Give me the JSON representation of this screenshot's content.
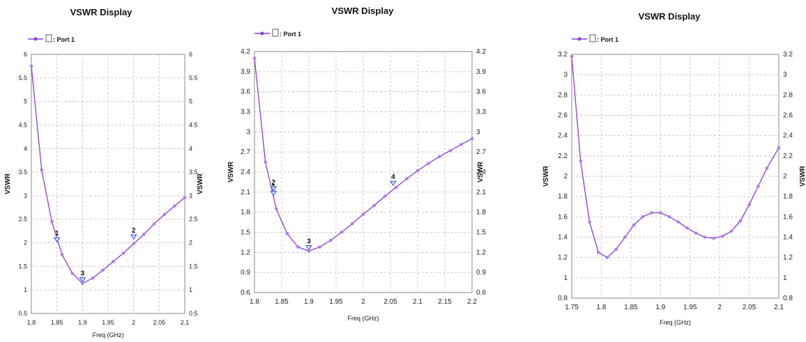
{
  "chart_data": [
    {
      "type": "line",
      "title": "VSWR Display",
      "xlabel": "Freq (GHz)",
      "ylabel": "VSWR",
      "ylabel_right": "VSWR",
      "xlim": [
        1.8,
        2.1
      ],
      "ylim": [
        0.5,
        6
      ],
      "x_ticks": [
        1.8,
        1.85,
        1.9,
        1.95,
        2,
        2.05,
        2.1
      ],
      "x_tick_labels": [
        "1.8",
        "1.85",
        "1.9",
        "1.95",
        "2",
        "2.05",
        "2.1"
      ],
      "y_ticks": [
        0.5,
        1,
        1.5,
        2,
        2.5,
        3,
        3.5,
        4,
        4.5,
        5,
        5.5,
        6
      ],
      "y_tick_labels": [
        "0.5",
        "1",
        "1.5",
        "2",
        "2.5",
        "3",
        "3.5",
        "4",
        "4.5",
        "5",
        "5.5",
        "6"
      ],
      "grid": true,
      "legend": {
        "label": ": Port 1",
        "placement": "top-left"
      },
      "series": [
        {
          "name": ": Port 1",
          "color": "#8a3ad8",
          "x": [
            1.8,
            1.82,
            1.84,
            1.86,
            1.88,
            1.9,
            1.92,
            1.94,
            1.96,
            1.98,
            2.0,
            2.02,
            2.04,
            2.06,
            2.08,
            2.1
          ],
          "y": [
            5.75,
            3.55,
            2.45,
            1.75,
            1.35,
            1.14,
            1.25,
            1.42,
            1.6,
            1.78,
            1.98,
            2.18,
            2.4,
            2.6,
            2.78,
            2.96
          ]
        }
      ],
      "markers": [
        {
          "label": "1",
          "x": 1.85,
          "y": 2.02
        },
        {
          "label": "2",
          "x": 2.0,
          "y": 2.08
        },
        {
          "label": "3",
          "x": 1.9,
          "y": 1.17
        }
      ]
    },
    {
      "type": "line",
      "title": "VSWR Display",
      "xlabel": "Freq (GHz)",
      "ylabel": "VSWR",
      "ylabel_right": "VSWR",
      "xlim": [
        1.8,
        2.2
      ],
      "ylim": [
        0.6,
        4.2
      ],
      "x_ticks": [
        1.8,
        1.85,
        1.9,
        1.95,
        2,
        2.05,
        2.1,
        2.15,
        2.2
      ],
      "x_tick_labels": [
        "1.8",
        "1.85",
        "1.9",
        "1.95",
        "2",
        "2.05",
        "2.1",
        "2.15",
        "2.2"
      ],
      "y_ticks": [
        0.6,
        0.9,
        1.2,
        1.5,
        1.8,
        2.1,
        2.4,
        2.7,
        3,
        3.3,
        3.6,
        3.9,
        4.2
      ],
      "y_tick_labels": [
        "0.6",
        "0.9",
        "1.2",
        "1.5",
        "1.8",
        "2.1",
        "2.4",
        "2.7",
        "3",
        "3.3",
        "3.6",
        "3.9",
        "4.2"
      ],
      "grid": true,
      "legend": {
        "label": ": Port 1",
        "placement": "top-left"
      },
      "series": [
        {
          "name": ": Port 1",
          "color": "#8a3ad8",
          "x": [
            1.8,
            1.82,
            1.84,
            1.86,
            1.88,
            1.9,
            1.92,
            1.94,
            1.96,
            1.98,
            2.0,
            2.02,
            2.04,
            2.06,
            2.08,
            2.1,
            2.12,
            2.14,
            2.16,
            2.18,
            2.2
          ],
          "y": [
            4.1,
            2.55,
            1.85,
            1.48,
            1.28,
            1.22,
            1.28,
            1.38,
            1.5,
            1.63,
            1.77,
            1.9,
            2.04,
            2.17,
            2.3,
            2.42,
            2.53,
            2.63,
            2.72,
            2.81,
            2.9
          ]
        }
      ],
      "markers": [
        {
          "label": "1",
          "x": 1.835,
          "y": 2.05
        },
        {
          "label": "2",
          "x": 1.835,
          "y": 2.12
        },
        {
          "label": "3",
          "x": 1.9,
          "y": 1.24
        },
        {
          "label": "4",
          "x": 2.055,
          "y": 2.2
        }
      ]
    },
    {
      "type": "line",
      "title": "VSWR Display",
      "xlabel": "Freq (GHz)",
      "ylabel": "VSWR",
      "ylabel_right": "VSWR",
      "xlim": [
        1.75,
        2.1
      ],
      "ylim": [
        0.8,
        3.2
      ],
      "x_ticks": [
        1.75,
        1.8,
        1.85,
        1.9,
        1.95,
        2,
        2.05,
        2.1
      ],
      "x_tick_labels": [
        "1.75",
        "1.8",
        "1.85",
        "1.9",
        "1.95",
        "2",
        "2.05",
        "2.1"
      ],
      "y_ticks": [
        0.8,
        1,
        1.2,
        1.4,
        1.6,
        1.8,
        2,
        2.2,
        2.4,
        2.6,
        2.8,
        3,
        3.2
      ],
      "y_tick_labels": [
        "0.8",
        "1",
        "1.2",
        "1.4",
        "1.6",
        "1.8",
        "2",
        "2.2",
        "2.4",
        "2.6",
        "2.8",
        "3",
        "3.2"
      ],
      "grid": true,
      "legend": {
        "label": ": Port 1",
        "placement": "top-left"
      },
      "series": [
        {
          "name": ": Port 1",
          "color": "#8a3ad8",
          "x": [
            1.75,
            1.765,
            1.78,
            1.795,
            1.81,
            1.825,
            1.84,
            1.855,
            1.87,
            1.885,
            1.9,
            1.915,
            1.93,
            1.945,
            1.96,
            1.975,
            1.99,
            2.005,
            2.02,
            2.035,
            2.05,
            2.065,
            2.08,
            2.1
          ],
          "y": [
            3.18,
            2.15,
            1.55,
            1.25,
            1.2,
            1.28,
            1.4,
            1.52,
            1.6,
            1.64,
            1.64,
            1.6,
            1.55,
            1.49,
            1.44,
            1.4,
            1.39,
            1.41,
            1.46,
            1.56,
            1.72,
            1.9,
            2.08,
            2.28
          ]
        }
      ],
      "markers": []
    }
  ]
}
